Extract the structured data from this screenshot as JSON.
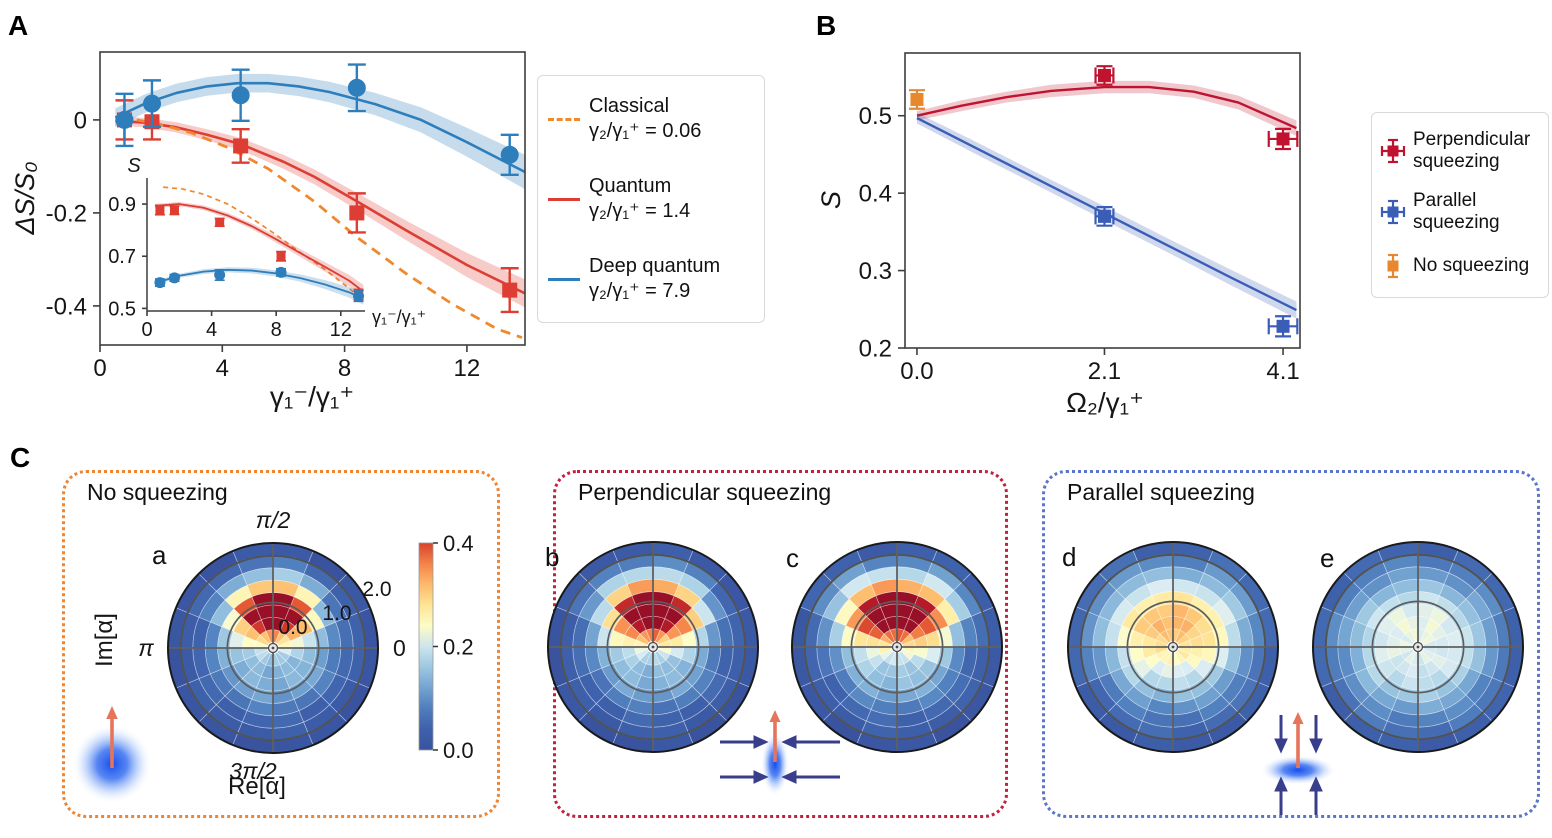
{
  "panels": {
    "A": {
      "letter": "A",
      "legend": {
        "items": [
          {
            "label": "Classical",
            "formula": "γ₂/γ₁⁺ = 0.06",
            "swatch": "dashed",
            "color": "#f0882e"
          },
          {
            "label": "Quantum",
            "formula": "γ₂/γ₁⁺ = 1.4",
            "swatch": "solid",
            "color": "#dd3d32"
          },
          {
            "label": "Deep quantum",
            "formula": "γ₂/γ₁⁺ = 7.9",
            "swatch": "solid",
            "color": "#2e7ebc"
          }
        ]
      }
    },
    "B": {
      "letter": "B",
      "legend": {
        "items": [
          {
            "label": "Perpendicular squeezing",
            "color": "#bf1330",
            "xerr": true
          },
          {
            "label": "Parallel squeezing",
            "color": "#3a5eb8",
            "xerr": true
          },
          {
            "label": "No squeezing",
            "color": "#e8882e",
            "xerr": false
          }
        ]
      }
    },
    "C": {
      "letter": "C",
      "boxes": [
        {
          "title": "No squeezing",
          "border_color": "#ef8532",
          "icon": "coherent-state-icon"
        },
        {
          "title": "Perpendicular squeezing",
          "border_color": "#c22240",
          "icon": "perpendicular-squeeze-icon"
        },
        {
          "title": "Parallel squeezing",
          "border_color": "#5b76c8",
          "icon": "parallel-squeeze-icon"
        }
      ]
    }
  },
  "chart_data": [
    {
      "id": "A-main",
      "type": "line",
      "xlabel": "γ₁⁻/γ₁⁺",
      "ylabel": "ΔS/S₀",
      "xlim": [
        0,
        13.9
      ],
      "ylim": [
        -0.484,
        0.146
      ],
      "xticks": [
        0,
        4,
        8,
        12
      ],
      "xtick_labels": [
        "0",
        "4",
        "8",
        "12"
      ],
      "yticks": [
        0,
        -0.2,
        -0.4
      ],
      "ytick_labels": [
        "0",
        "-0.2",
        "-0.4"
      ],
      "series": [
        {
          "name": "Deep quantum fit",
          "role": "band",
          "color": "#2e7ebc",
          "x": [
            0.5,
            1.5,
            2.5,
            3.5,
            4.5,
            5.5,
            6.5,
            7.5,
            9,
            10.5,
            12,
            13.9
          ],
          "y": [
            0.005,
            0.036,
            0.058,
            0.072,
            0.079,
            0.079,
            0.072,
            0.06,
            0.034,
            0.0,
            -0.048,
            -0.112
          ],
          "band": [
            0.02,
            0.02,
            0.02,
            0.02,
            0.02,
            0.02,
            0.021,
            0.022,
            0.024,
            0.027,
            0.031,
            0.037
          ]
        },
        {
          "name": "Quantum fit",
          "role": "band",
          "color": "#dd3d32",
          "x": [
            0.5,
            1.5,
            2.5,
            3.5,
            4.6,
            6,
            7,
            8.4,
            10,
            12,
            13.9
          ],
          "y": [
            -0.002,
            -0.006,
            -0.016,
            -0.032,
            -0.052,
            -0.09,
            -0.122,
            -0.175,
            -0.237,
            -0.312,
            -0.373
          ],
          "band": [
            0.01,
            0.01,
            0.011,
            0.012,
            0.013,
            0.015,
            0.016,
            0.018,
            0.021,
            0.026,
            0.03
          ]
        },
        {
          "name": "Classical",
          "role": "dashed",
          "color": "#f0882e",
          "x": [
            1.2,
            2,
            3,
            4.2,
            5.5,
            7,
            8.4,
            10,
            11.5,
            13,
            13.8
          ],
          "y": [
            0.0,
            -0.01,
            -0.028,
            -0.06,
            -0.105,
            -0.175,
            -0.252,
            -0.33,
            -0.395,
            -0.45,
            -0.468
          ]
        },
        {
          "name": "Quantum data",
          "role": "points",
          "marker": "square",
          "color": "#dd3d32",
          "x": [
            0.8,
            1.7,
            4.6,
            8.4,
            13.4
          ],
          "y": [
            0.0,
            -0.004,
            -0.056,
            -0.2,
            -0.366
          ],
          "yerr": [
            0.042,
            0.038,
            0.036,
            0.042,
            0.047
          ]
        },
        {
          "name": "Deep quantum data",
          "role": "points",
          "marker": "circle",
          "color": "#2e7ebc",
          "x": [
            0.8,
            1.7,
            4.6,
            8.4,
            13.4
          ],
          "y": [
            0.0,
            0.035,
            0.053,
            0.069,
            -0.075
          ],
          "yerr": [
            0.056,
            0.05,
            0.055,
            0.05,
            0.043
          ]
        }
      ]
    },
    {
      "id": "A-inset",
      "type": "line",
      "xlabel": "γ₁⁻/γ₁⁺",
      "ylabel": "S",
      "xlim": [
        0,
        13.5
      ],
      "ylim": [
        0.49,
        1.0
      ],
      "xticks": [
        0,
        4,
        8,
        12
      ],
      "xtick_labels": [
        "0",
        "4",
        "8",
        "12"
      ],
      "yticks": [
        0.5,
        0.7,
        0.9
      ],
      "ytick_labels": [
        "0.5",
        "0.7",
        "0.9"
      ],
      "series": [
        {
          "name": "Classical",
          "role": "dashed",
          "color": "#f0882e",
          "x": [
            1,
            2.2,
            3.5,
            5,
            6.5,
            8,
            9.5,
            11,
            12.5,
            13.4
          ],
          "y": [
            0.965,
            0.958,
            0.938,
            0.9,
            0.845,
            0.782,
            0.714,
            0.65,
            0.578,
            0.53
          ]
        },
        {
          "name": "Quantum fit",
          "role": "band",
          "color": "#dd3d32",
          "x": [
            0.5,
            2,
            3.5,
            5,
            6.5,
            8,
            9.5,
            11,
            12.5,
            13.4
          ],
          "y": [
            0.893,
            0.9,
            0.886,
            0.856,
            0.815,
            0.765,
            0.712,
            0.66,
            0.607,
            0.565
          ],
          "band": [
            0.008,
            0.008,
            0.009,
            0.01,
            0.011,
            0.013,
            0.015,
            0.018,
            0.022,
            0.025
          ]
        },
        {
          "name": "Deep quantum fit",
          "role": "band",
          "color": "#2e7ebc",
          "x": [
            0.5,
            2,
            3.5,
            5,
            6.5,
            8,
            9.5,
            11,
            12.5,
            13.4
          ],
          "y": [
            0.597,
            0.625,
            0.641,
            0.648,
            0.645,
            0.634,
            0.616,
            0.592,
            0.562,
            0.537
          ],
          "band": [
            0.008,
            0.008,
            0.009,
            0.01,
            0.011,
            0.012,
            0.014,
            0.017,
            0.02,
            0.023
          ]
        },
        {
          "name": "Quantum data",
          "role": "points",
          "marker": "square",
          "color": "#dd3d32",
          "x": [
            0.8,
            1.7,
            4.5,
            8.3,
            13.1
          ],
          "y": [
            0.877,
            0.876,
            0.83,
            0.7,
            0.553
          ],
          "yerr": [
            0.018,
            0.016,
            0.015,
            0.018,
            0.02
          ]
        },
        {
          "name": "Deep quantum data",
          "role": "points",
          "marker": "circle",
          "color": "#2e7ebc",
          "x": [
            0.8,
            1.7,
            4.5,
            8.3,
            13.1
          ],
          "y": [
            0.599,
            0.617,
            0.628,
            0.638,
            0.547
          ],
          "yerr": [
            0.014,
            0.013,
            0.02,
            0.014,
            0.02
          ]
        }
      ]
    },
    {
      "id": "B",
      "type": "line",
      "xlabel": "Ω₂/γ₁⁺",
      "ylabel": "S",
      "xlim": [
        -0.134,
        4.29
      ],
      "ylim": [
        0.2,
        0.581
      ],
      "xticks": [
        0.0,
        2.1,
        4.1
      ],
      "xtick_labels": [
        "0.0",
        "2.1",
        "4.1"
      ],
      "yticks": [
        0.2,
        0.3,
        0.4,
        0.5
      ],
      "ytick_labels": [
        "0.2",
        "0.3",
        "0.4",
        "0.5"
      ],
      "series": [
        {
          "name": "Perpendicular squeezing fit",
          "role": "band",
          "color": "#bf1330",
          "x": [
            0,
            0.5,
            1,
            1.5,
            2.1,
            2.6,
            3.1,
            3.6,
            4.25
          ],
          "y": [
            0.5,
            0.513,
            0.524,
            0.532,
            0.537,
            0.537,
            0.531,
            0.517,
            0.484
          ],
          "band": [
            0.006,
            0.007,
            0.007,
            0.008,
            0.008,
            0.008,
            0.008,
            0.009,
            0.01
          ]
        },
        {
          "name": "Parallel squeezing fit",
          "role": "band",
          "color": "#3a5eb8",
          "x": [
            0,
            0.7,
            1.4,
            2.1,
            2.8,
            3.5,
            4.25
          ],
          "y": [
            0.497,
            0.456,
            0.415,
            0.374,
            0.333,
            0.292,
            0.249
          ],
          "band": [
            0.007,
            0.008,
            0.008,
            0.009,
            0.009,
            0.01,
            0.011
          ]
        },
        {
          "name": "No squeezing data",
          "role": "points",
          "marker": "square",
          "color": "#e8882e",
          "x": [
            0.0
          ],
          "y": [
            0.521
          ],
          "yerr": [
            0.012
          ]
        },
        {
          "name": "Perpendicular squeezing data",
          "role": "points",
          "marker": "square",
          "color": "#bf1330",
          "x": [
            2.1,
            4.1
          ],
          "y": [
            0.552,
            0.47
          ],
          "yerr": [
            0.012,
            0.013
          ],
          "xerr": [
            0.1,
            0.16
          ]
        },
        {
          "name": "Parallel squeezing data",
          "role": "points",
          "marker": "square",
          "color": "#3a5eb8",
          "x": [
            2.1,
            4.1
          ],
          "y": [
            0.37,
            0.228
          ],
          "yerr": [
            0.012,
            0.013
          ],
          "xerr": [
            0.1,
            0.16
          ]
        }
      ]
    },
    {
      "id": "C-polar",
      "type": "heatmap",
      "subtype": "polar-husimi",
      "vmax": 0.45,
      "colorbar": {
        "ticks": [
          "0.0",
          "0.2",
          "0.4"
        ],
        "values": [
          0.0,
          0.2,
          0.4
        ],
        "top_value": 0.4
      },
      "colormap": [
        [
          0.0,
          "#39539f"
        ],
        [
          0.1,
          "#3f63ad"
        ],
        [
          0.2,
          "#5585c1"
        ],
        [
          0.3,
          "#82b2d8"
        ],
        [
          0.4,
          "#b3d7e8"
        ],
        [
          0.47,
          "#dcedf2"
        ],
        [
          0.53,
          "#fdfdc8"
        ],
        [
          0.61,
          "#fee99c"
        ],
        [
          0.7,
          "#fdc170"
        ],
        [
          0.79,
          "#f78a4e"
        ],
        [
          0.87,
          "#e1512f"
        ],
        [
          0.94,
          "#ba1c28"
        ],
        [
          1.0,
          "#971027"
        ]
      ],
      "angular_ticks": [
        "π/2",
        "π",
        "3π/2",
        "0"
      ],
      "radial_ticks": [
        "0.0",
        "1.0",
        "2.0"
      ],
      "xlabel": "Re[α]",
      "ylabel": "Im[α]",
      "plots": [
        {
          "label": "a",
          "model": {
            "floor": 0.012,
            "amp": 0.44,
            "center_im": 0.82,
            "sigma_re": 0.6,
            "sigma_im": 0.5,
            "bump": 0.1,
            "bump_sigma": 1.0,
            "ring": 0.05,
            "seed": 1
          }
        },
        {
          "label": "b",
          "model": {
            "floor": 0.012,
            "amp": 0.44,
            "center_im": 0.82,
            "sigma_re": 0.7,
            "sigma_im": 0.54,
            "bump": 0.1,
            "bump_sigma": 1.0,
            "ring": 0.05,
            "seed": 2
          }
        },
        {
          "label": "c",
          "model": {
            "floor": 0.015,
            "amp": 0.41,
            "center_im": 0.8,
            "sigma_re": 0.85,
            "sigma_im": 0.56,
            "bump": 0.11,
            "bump_sigma": 1.0,
            "ring": 0.05,
            "seed": 3
          }
        },
        {
          "label": "d",
          "model": {
            "floor": 0.02,
            "amp": 0.2,
            "center_im": 0.5,
            "sigma_re": 1.15,
            "sigma_im": 0.8,
            "bump": 0.1,
            "bump_sigma": 1.2,
            "ring": 0.03,
            "seed": 4
          }
        },
        {
          "label": "e",
          "model": {
            "floor": 0.02,
            "amp": 0.12,
            "center_im": 0.22,
            "sigma_re": 1.25,
            "sigma_im": 1.05,
            "bump": 0.08,
            "bump_sigma": 1.3,
            "ring": 0.03,
            "seed": 5
          }
        }
      ]
    }
  ]
}
